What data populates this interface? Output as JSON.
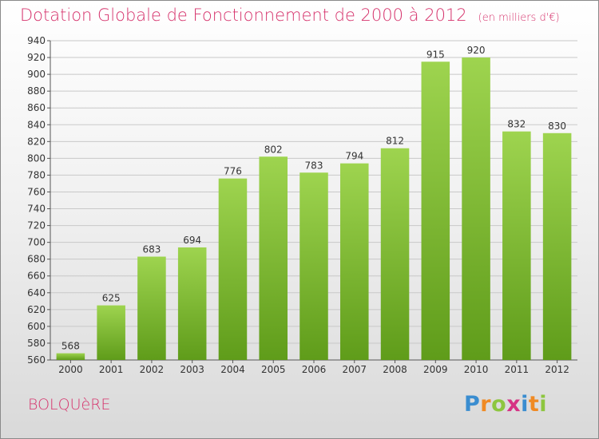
{
  "title": "Dotation Globale de Fonctionnement de 2000 à 2012",
  "unit_note": "(en milliers d'€)",
  "commune": "BOLQUèRE",
  "logo": {
    "text": "Proxiti",
    "letters": [
      {
        "ch": "P",
        "color": "#3a8dd0"
      },
      {
        "ch": "r",
        "color": "#f08a24"
      },
      {
        "ch": "o",
        "color": "#8dc63f"
      },
      {
        "ch": "x",
        "color": "#d63384"
      },
      {
        "ch": "i",
        "color": "#3a8dd0"
      },
      {
        "ch": "t",
        "color": "#f08a24"
      },
      {
        "ch": "i",
        "color": "#8dc63f"
      }
    ]
  },
  "colors": {
    "title": "#d6336c",
    "bar_top": "#9ed44f",
    "bar_bottom": "#5f9c1a"
  },
  "chart_data": {
    "type": "bar",
    "title": "Dotation Globale de Fonctionnement de 2000 à 2012",
    "subtitle": "(en milliers d'€)",
    "xlabel": "",
    "ylabel": "",
    "categories": [
      "2000",
      "2001",
      "2002",
      "2003",
      "2004",
      "2005",
      "2006",
      "2007",
      "2008",
      "2009",
      "2010",
      "2011",
      "2012"
    ],
    "values": [
      568,
      625,
      683,
      694,
      776,
      802,
      783,
      794,
      812,
      915,
      920,
      832,
      830
    ],
    "ylim": [
      560,
      940
    ],
    "yticks": [
      560,
      580,
      600,
      620,
      640,
      660,
      680,
      700,
      720,
      740,
      760,
      780,
      800,
      820,
      840,
      860,
      880,
      900,
      920,
      940
    ],
    "grid": true,
    "legend": "none"
  }
}
